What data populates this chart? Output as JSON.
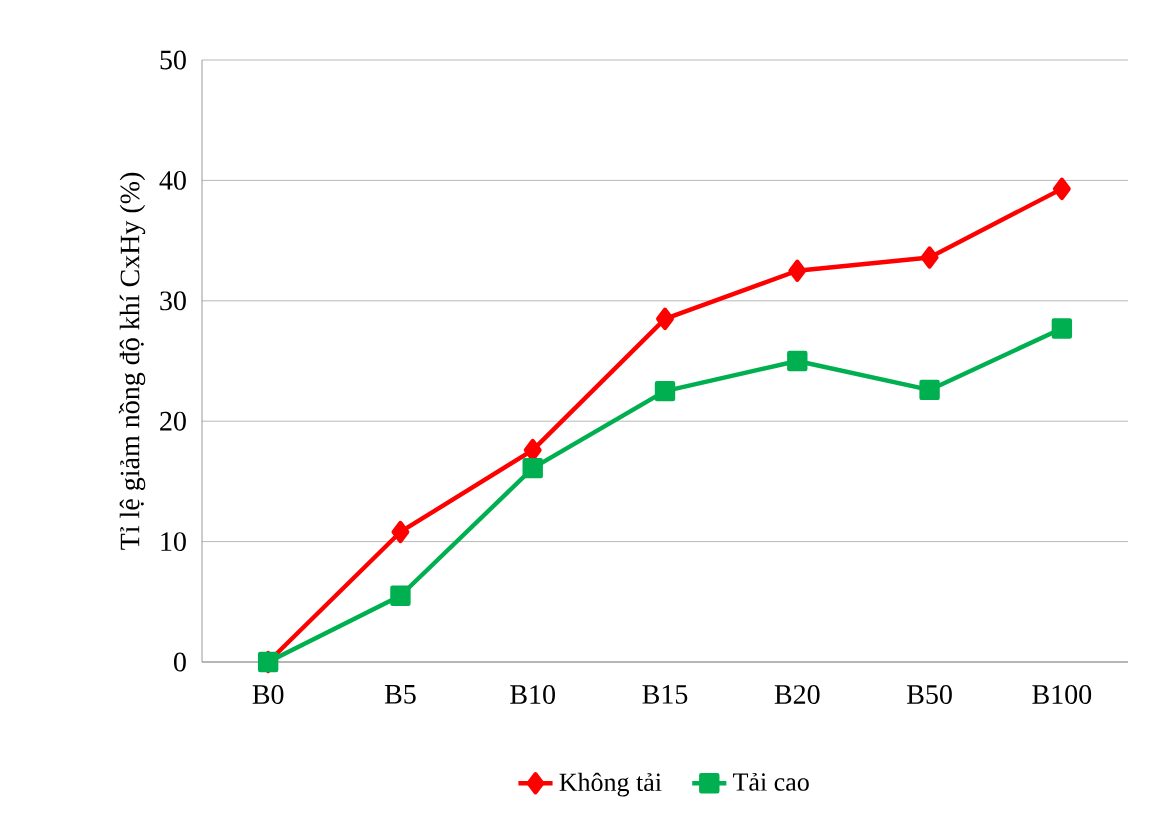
{
  "chart_data": {
    "type": "line",
    "ylabel": "Tỉ lệ giảm nồng độ khí CxHy (%)",
    "categories": [
      "B0",
      "B5",
      "B10",
      "B15",
      "B20",
      "B50",
      "B100"
    ],
    "series": [
      {
        "name": "Không tải",
        "color": "#ff0000",
        "marker": "diamond",
        "values": [
          0,
          10.8,
          17.6,
          28.5,
          32.5,
          33.6,
          39.3
        ]
      },
      {
        "name": "Tải cao",
        "color": "#00b050",
        "marker": "square",
        "values": [
          0,
          5.5,
          16.1,
          22.5,
          25.0,
          22.6,
          27.7
        ]
      }
    ],
    "ylim": [
      0,
      50
    ],
    "yticks": [
      0,
      10,
      20,
      30,
      40,
      50
    ],
    "grid": "y",
    "legend": "bottom"
  }
}
